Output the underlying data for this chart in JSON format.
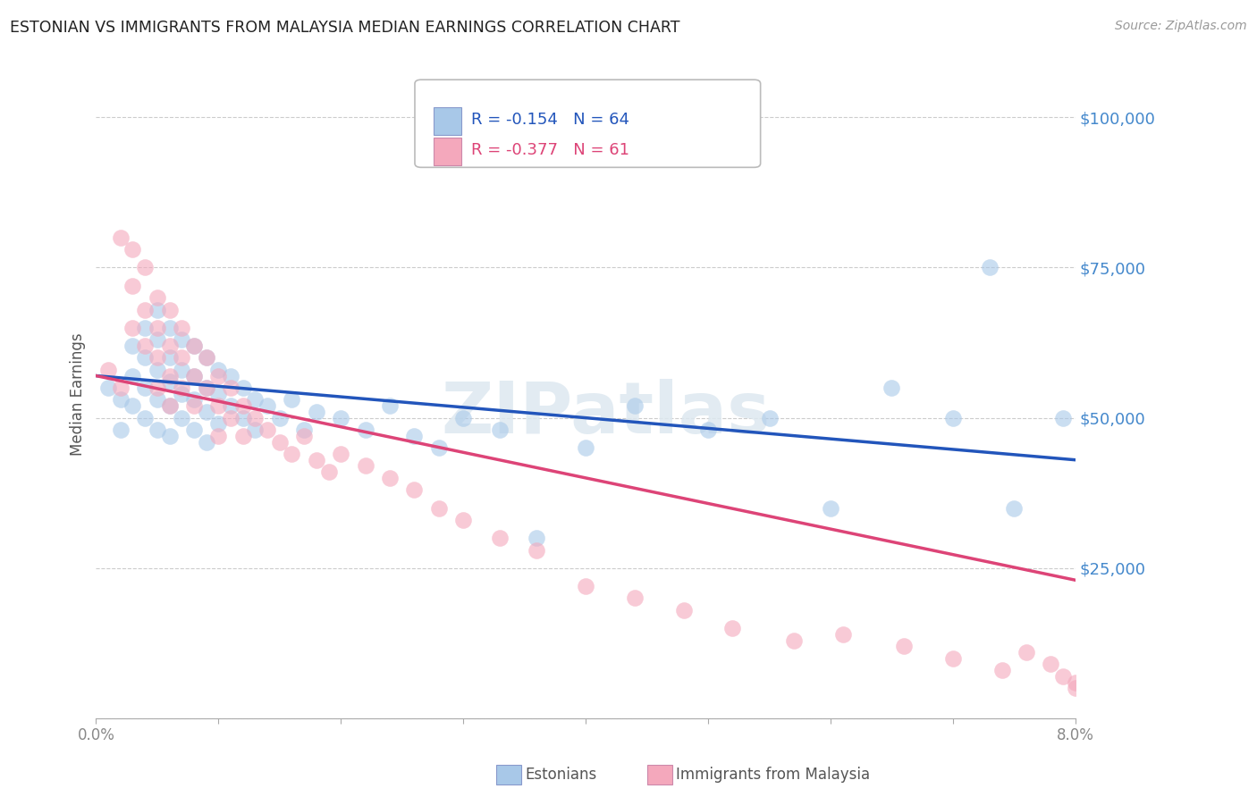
{
  "title": "ESTONIAN VS IMMIGRANTS FROM MALAYSIA MEDIAN EARNINGS CORRELATION CHART",
  "source": "Source: ZipAtlas.com",
  "ylabel": "Median Earnings",
  "watermark": "ZIPatlas",
  "y_ticks": [
    0,
    25000,
    50000,
    75000,
    100000
  ],
  "y_tick_labels": [
    "",
    "$25,000",
    "$50,000",
    "$75,000",
    "$100,000"
  ],
  "x_range": [
    0.0,
    0.08
  ],
  "y_range": [
    0,
    108000
  ],
  "legend_blue_r": "R = -0.154",
  "legend_blue_n": "N = 64",
  "legend_pink_r": "R = -0.377",
  "legend_pink_n": "N = 61",
  "legend_label_blue": "Estonians",
  "legend_label_pink": "Immigrants from Malaysia",
  "blue_color": "#a8c8e8",
  "pink_color": "#f4a8bc",
  "blue_line_color": "#2255bb",
  "pink_line_color": "#dd4477",
  "title_color": "#222222",
  "axis_label_color": "#555555",
  "tick_label_color": "#4488cc",
  "grid_color": "#cccccc",
  "blue_scatter_x": [
    0.001,
    0.002,
    0.002,
    0.003,
    0.003,
    0.003,
    0.004,
    0.004,
    0.004,
    0.004,
    0.005,
    0.005,
    0.005,
    0.005,
    0.005,
    0.006,
    0.006,
    0.006,
    0.006,
    0.006,
    0.007,
    0.007,
    0.007,
    0.007,
    0.008,
    0.008,
    0.008,
    0.008,
    0.009,
    0.009,
    0.009,
    0.009,
    0.01,
    0.01,
    0.01,
    0.011,
    0.011,
    0.012,
    0.012,
    0.013,
    0.013,
    0.014,
    0.015,
    0.016,
    0.017,
    0.018,
    0.02,
    0.022,
    0.024,
    0.026,
    0.028,
    0.03,
    0.033,
    0.036,
    0.04,
    0.044,
    0.05,
    0.055,
    0.06,
    0.065,
    0.07,
    0.073,
    0.075,
    0.079
  ],
  "blue_scatter_y": [
    55000,
    53000,
    48000,
    62000,
    57000,
    52000,
    65000,
    60000,
    55000,
    50000,
    68000,
    63000,
    58000,
    53000,
    48000,
    65000,
    60000,
    56000,
    52000,
    47000,
    63000,
    58000,
    54000,
    50000,
    62000,
    57000,
    53000,
    48000,
    60000,
    55000,
    51000,
    46000,
    58000,
    54000,
    49000,
    57000,
    52000,
    55000,
    50000,
    53000,
    48000,
    52000,
    50000,
    53000,
    48000,
    51000,
    50000,
    48000,
    52000,
    47000,
    45000,
    50000,
    48000,
    30000,
    45000,
    52000,
    48000,
    50000,
    35000,
    55000,
    50000,
    75000,
    35000,
    50000
  ],
  "pink_scatter_x": [
    0.001,
    0.002,
    0.002,
    0.003,
    0.003,
    0.003,
    0.004,
    0.004,
    0.004,
    0.005,
    0.005,
    0.005,
    0.005,
    0.006,
    0.006,
    0.006,
    0.006,
    0.007,
    0.007,
    0.007,
    0.008,
    0.008,
    0.008,
    0.009,
    0.009,
    0.01,
    0.01,
    0.01,
    0.011,
    0.011,
    0.012,
    0.012,
    0.013,
    0.014,
    0.015,
    0.016,
    0.017,
    0.018,
    0.019,
    0.02,
    0.022,
    0.024,
    0.026,
    0.028,
    0.03,
    0.033,
    0.036,
    0.04,
    0.044,
    0.048,
    0.052,
    0.057,
    0.061,
    0.066,
    0.07,
    0.074,
    0.076,
    0.078,
    0.079,
    0.08,
    0.08
  ],
  "pink_scatter_y": [
    58000,
    80000,
    55000,
    78000,
    72000,
    65000,
    75000,
    68000,
    62000,
    70000,
    65000,
    60000,
    55000,
    68000,
    62000,
    57000,
    52000,
    65000,
    60000,
    55000,
    62000,
    57000,
    52000,
    60000,
    55000,
    57000,
    52000,
    47000,
    55000,
    50000,
    52000,
    47000,
    50000,
    48000,
    46000,
    44000,
    47000,
    43000,
    41000,
    44000,
    42000,
    40000,
    38000,
    35000,
    33000,
    30000,
    28000,
    22000,
    20000,
    18000,
    15000,
    13000,
    14000,
    12000,
    10000,
    8000,
    11000,
    9000,
    7000,
    6000,
    5000
  ],
  "blue_trendline_x": [
    0.0,
    0.08
  ],
  "blue_trendline_y": [
    57000,
    43000
  ],
  "pink_trendline_x": [
    0.0,
    0.08
  ],
  "pink_trendline_y": [
    57000,
    23000
  ]
}
